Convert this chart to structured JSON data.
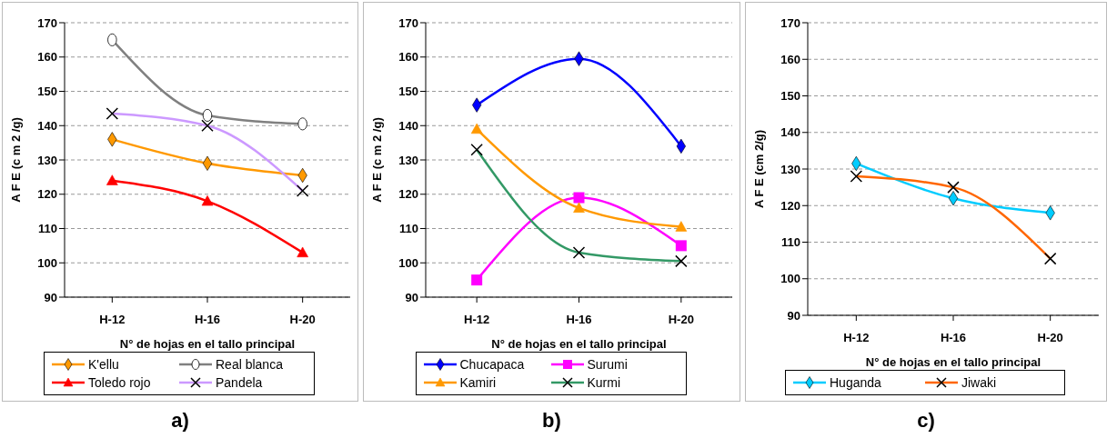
{
  "chart_data": [
    {
      "type": "line",
      "categories": [
        "H-12",
        "H-16",
        "H-20"
      ],
      "xlabel": "N° de hojas en el tallo principal",
      "ylabel": "A F E  (c m 2 /g)",
      "ylim": [
        90,
        170
      ],
      "yticks": [
        90,
        100,
        110,
        120,
        130,
        140,
        150,
        160,
        170
      ],
      "grid": "y",
      "legend": "bottom",
      "annotations": [
        "a)"
      ],
      "series": [
        {
          "name": "K'ellu",
          "color": "#ff9900",
          "marker": "diamond",
          "values": [
            136,
            129,
            125.5
          ]
        },
        {
          "name": "Real blanca",
          "color": "#808080",
          "marker": "circle",
          "values": [
            165,
            143,
            140.5
          ]
        },
        {
          "name": "Toledo rojo",
          "color": "#ff0000",
          "marker": "triangle",
          "values": [
            124,
            118,
            103
          ]
        },
        {
          "name": "Pandela",
          "color": "#cc99ff",
          "marker": "cross",
          "values": [
            143.5,
            140,
            121
          ]
        }
      ]
    },
    {
      "type": "line",
      "categories": [
        "H-12",
        "H-16",
        "H-20"
      ],
      "xlabel": "N° de hojas en el tallo principal",
      "ylabel": "A F E  (c m 2 /g)",
      "ylim": [
        90,
        170
      ],
      "yticks": [
        90,
        100,
        110,
        120,
        130,
        140,
        150,
        160,
        170
      ],
      "grid": "y",
      "legend": "bottom",
      "annotations": [
        "b)"
      ],
      "series": [
        {
          "name": "Chucapaca",
          "color": "#0000ff",
          "marker": "diamond",
          "values": [
            146,
            159.5,
            134
          ]
        },
        {
          "name": "Surumi",
          "color": "#ff00ff",
          "marker": "square",
          "values": [
            95,
            119,
            105
          ]
        },
        {
          "name": "Kamiri",
          "color": "#ff9900",
          "marker": "triangle",
          "values": [
            139,
            116,
            110.5
          ]
        },
        {
          "name": "Kurmi",
          "color": "#339966",
          "marker": "cross",
          "values": [
            133,
            103,
            100.5
          ]
        }
      ]
    },
    {
      "type": "line",
      "categories": [
        "H-12",
        "H-16",
        "H-20"
      ],
      "xlabel": "N° de hojas en el tallo principal",
      "ylabel": "A F E  (cm 2/g)",
      "ylim": [
        90,
        170
      ],
      "yticks": [
        90,
        100,
        110,
        120,
        130,
        140,
        150,
        160,
        170
      ],
      "grid": "y",
      "legend": "bottom",
      "annotations": [
        "c)"
      ],
      "series": [
        {
          "name": "Huganda",
          "color": "#00ccff",
          "marker": "diamond",
          "values": [
            131.5,
            122,
            118
          ]
        },
        {
          "name": "Jiwaki",
          "color": "#ff6600",
          "marker": "cross",
          "values": [
            128,
            125,
            105.5
          ]
        }
      ]
    }
  ]
}
